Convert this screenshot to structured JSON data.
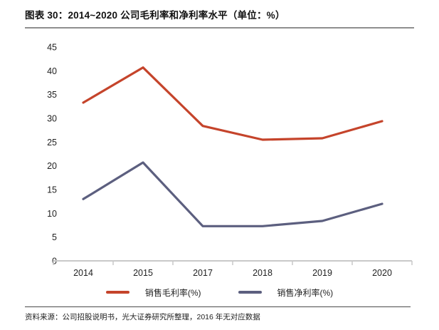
{
  "header": {
    "title": "图表 30：2014~2020 公司毛利率和净利率水平（单位：%）"
  },
  "footer": {
    "source": "资料来源：公司招股说明书，光大证券研究所整理，2016 年无对应数据"
  },
  "chart_data": {
    "type": "line",
    "title": "2014~2020 公司毛利率和净利率水平",
    "unit": "%",
    "categories": [
      "2014",
      "2015",
      "2017",
      "2018",
      "2019",
      "2020"
    ],
    "series": [
      {
        "name": "销售毛利率(%)",
        "color": "#c5442b",
        "values": [
          33.3,
          40.7,
          28.4,
          25.5,
          25.8,
          29.4
        ]
      },
      {
        "name": "销售净利率(%)",
        "color": "#5c5f7f",
        "values": [
          13.0,
          20.7,
          7.3,
          7.3,
          8.4,
          12.0
        ]
      }
    ],
    "xlabel": "",
    "ylabel": "",
    "ylim": [
      0,
      45
    ],
    "ytick_step": 5,
    "grid": false,
    "legend_position": "bottom",
    "axis_color": "#c9c9c9",
    "tick_label_color": "#222222",
    "note": "2016 年无对应数据"
  }
}
